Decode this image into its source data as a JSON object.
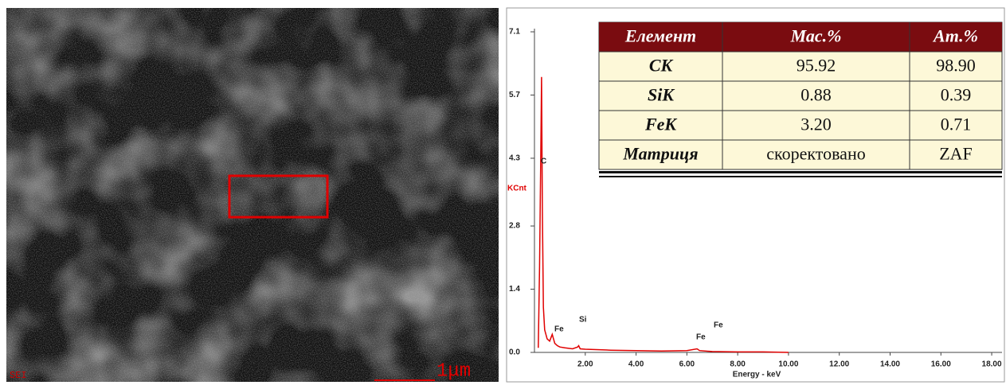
{
  "image": {
    "label": "SEI",
    "scale": "1μm"
  },
  "chart_data": {
    "type": "line",
    "y_label": "KCnt",
    "x_label": "Energy - keV",
    "annotations": [
      "C",
      "Fe",
      "Si",
      "Fe",
      "Fe"
    ],
    "xlim": [
      0,
      18.5
    ],
    "ylim": [
      0,
      7.1
    ],
    "xticks": [
      {
        "value": 2,
        "label": "2.00"
      },
      {
        "value": 4,
        "label": "4.00"
      },
      {
        "value": 6,
        "label": "6.00"
      },
      {
        "value": 8,
        "label": "8.00"
      },
      {
        "value": 10,
        "label": "10.00"
      },
      {
        "value": 12,
        "label": "12.00"
      },
      {
        "value": 14,
        "label": "14.00"
      },
      {
        "value": 16,
        "label": "16.00"
      },
      {
        "value": 18,
        "label": "18.00"
      }
    ],
    "yticks": [
      {
        "value": 0,
        "label": "0.0"
      },
      1.4,
      2.8,
      4.3,
      5.7,
      7.1
    ],
    "series": [
      {
        "color": "#e00000",
        "x": [
          0.15,
          0.2,
          0.25,
          0.28,
          0.31,
          0.35,
          0.4,
          0.5,
          0.6,
          0.7,
          0.8,
          0.9,
          1.0,
          1.2,
          1.5,
          1.7,
          1.74,
          1.8,
          2.0,
          3.0,
          4.0,
          5.0,
          6.0,
          6.4,
          6.5,
          7.0,
          8.0,
          9.0,
          10.0
        ],
        "values": [
          0.1,
          1.9,
          4.5,
          6.1,
          3.2,
          1.0,
          0.5,
          0.3,
          0.25,
          0.4,
          0.2,
          0.15,
          0.12,
          0.1,
          0.08,
          0.12,
          0.15,
          0.08,
          0.07,
          0.05,
          0.04,
          0.03,
          0.04,
          0.08,
          0.04,
          0.02,
          0.01,
          0.01,
          0.0
        ]
      }
    ]
  },
  "table": {
    "header": [
      "Елемент",
      "Мас.%",
      "Ат.%"
    ],
    "rows": [
      [
        "CK",
        "95.92",
        "98.90"
      ],
      [
        "SiK",
        "0.88",
        "0.39"
      ],
      [
        "FeK",
        "3.20",
        "0.71"
      ],
      [
        "Матриця",
        "скоректовано",
        "ZAF"
      ]
    ]
  }
}
